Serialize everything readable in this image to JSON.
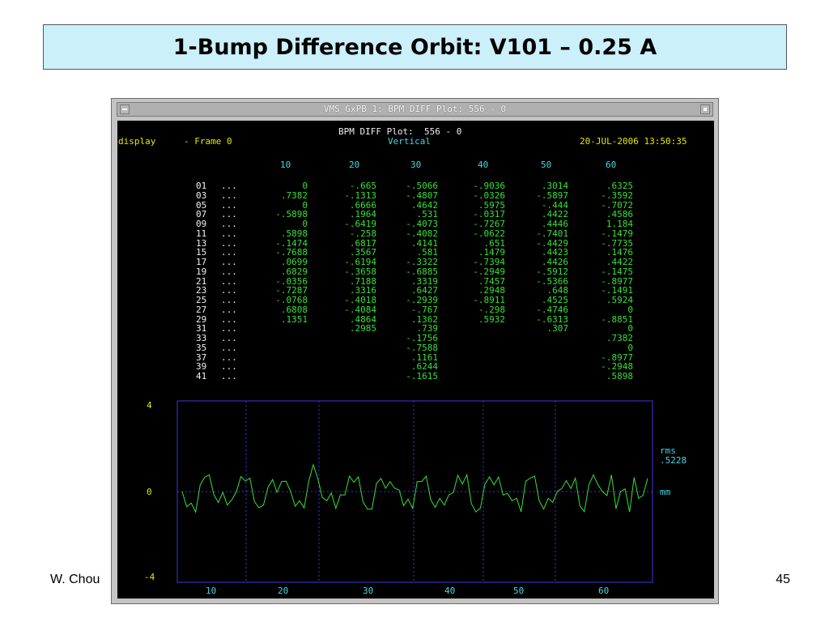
{
  "slide": {
    "title": "1-Bump Difference Orbit: V101 – 0.25 A",
    "author": "W. Chou",
    "page": "45"
  },
  "window": {
    "title": "VMS GxPB 1: BPM DIFF Plot:  556 - 0"
  },
  "screen": {
    "header_title": "BPM DIFF Plot:  556 - 0",
    "mode_left": "display",
    "frame_label": "- Frame 0",
    "plane": "Vertical",
    "timestamp": "20-JUL-2006 13:50:35",
    "col_headers": [
      "10",
      "20",
      "30",
      "40",
      "50",
      "60"
    ],
    "row_labels": [
      "01",
      "03",
      "05",
      "07",
      "09",
      "11",
      "13",
      "15",
      "17",
      "19",
      "21",
      "23",
      "25",
      "27",
      "29",
      "31",
      "33",
      "35",
      "37",
      "39",
      "41"
    ],
    "row_dots": "...",
    "columns": [
      [
        "0",
        ".7382",
        "0",
        "-.5898",
        "0",
        ".5898",
        "-.1474",
        "-.7688",
        ".0699",
        ".6829",
        "-.0356",
        "-.7287",
        "-.0768",
        ".6808",
        ".1351"
      ],
      [
        "-.665",
        "-.1313",
        ".6666",
        ".1964",
        "-.6419",
        "-.258",
        ".6817",
        ".3567",
        "-.6194",
        "-.3658",
        ".7188",
        ".3316",
        "-.4018",
        "-.4084",
        ".4864",
        ".2985"
      ],
      [
        "-.5066",
        "-.4807",
        ".4642",
        ".531",
        "-.4073",
        "-.4082",
        ".4141",
        ".581",
        "-.3322",
        "-.6885",
        ".3319",
        ".6427",
        "-.2939",
        "-.767",
        ".1362",
        ".739",
        "-.1756",
        "-.7588",
        ".1161",
        ".6244",
        "-.1615"
      ],
      [
        "-.9036",
        "-.0326",
        ".5975",
        "-.0317",
        "-.7267",
        "-.0622",
        ".651",
        ".1479",
        "-.7394",
        "-.2949",
        ".7457",
        ".2948",
        "-.8911",
        "-.298",
        ".5932"
      ],
      [
        ".3014",
        "-.5897",
        "-.444",
        ".4422",
        ".4446",
        "-.7401",
        "-.4429",
        ".4423",
        ".4426",
        "-.5912",
        "-.5366",
        ".648",
        ".4525",
        "-.4746",
        "-.6313",
        ".307"
      ],
      [
        ".6325",
        "-.3592",
        "-.7072",
        ".4586",
        "1.184",
        "-.1479",
        "-.7735",
        ".1476",
        ".4422",
        "-.1475",
        "-.8977",
        "-.1491",
        ".5924",
        "0",
        "-.8851",
        "0",
        ".7382",
        "0",
        "-.8977",
        "-.2948",
        ".5898"
      ]
    ],
    "plot": {
      "y_top_label": "4",
      "y_mid_label": "0",
      "y_bottom_label": "-4",
      "x_tick_labels": [
        "10",
        "20",
        "30",
        "40",
        "50",
        "60"
      ],
      "rms_label": "rms",
      "rms_value": ".5228",
      "unit": "mm",
      "frame_color": "#3a3ae0",
      "trace_color": "#38e038"
    }
  },
  "chart_data": {
    "type": "line",
    "title": "",
    "xlabel": "",
    "ylabel": "mm",
    "xlim": [
      1,
      67
    ],
    "ylim": [
      -4,
      4
    ],
    "grid": true,
    "series": [
      {
        "values": [
          0,
          -0.665,
          -0.5066,
          -0.9036,
          0.3014,
          0.6325,
          0.7382,
          -0.1313,
          -0.4807,
          -0.0326,
          -0.5897,
          -0.3592,
          0,
          0.6666,
          0.4642,
          0.5975,
          -0.444,
          -0.7072,
          -0.5898,
          0.1964,
          0.531,
          -0.0317,
          0.4422,
          0.4586,
          0,
          -0.6419,
          -0.4073,
          -0.7267,
          0.4446,
          1.184,
          0.5898,
          -0.258,
          -0.4082,
          -0.0622,
          -0.7401,
          -0.1479,
          -0.1474,
          0.6817,
          0.4141,
          0.651,
          -0.4429,
          -0.7735,
          -0.7688,
          0.3567,
          0.581,
          0.1479,
          0.4423,
          0.1476,
          0.0699,
          -0.6194,
          -0.3322,
          -0.7394,
          0.4426,
          0.4422,
          0.6829,
          -0.3658,
          -0.6885,
          -0.2949,
          -0.5912,
          -0.1475,
          -0.0356,
          0.7188,
          0.3319,
          0.7457,
          -0.5366,
          -0.8977,
          -0.7287,
          0.3316,
          0.6427,
          0.2948,
          0.648,
          -0.1491,
          -0.0768,
          -0.4018,
          -0.2939,
          -0.8911,
          0.4525,
          0.5924,
          0.6808,
          -0.4084,
          -0.767,
          -0.298,
          -0.4746,
          0,
          0.1351,
          0.4864,
          0.1362,
          0.5932,
          -0.6313,
          -0.8851,
          0.2985,
          0.739,
          0.307,
          0,
          -0.1756,
          0.7382,
          -0.7588,
          0,
          0.1161,
          -0.8977,
          0.6244,
          -0.2948,
          -0.1615,
          0.5898
        ]
      }
    ]
  }
}
